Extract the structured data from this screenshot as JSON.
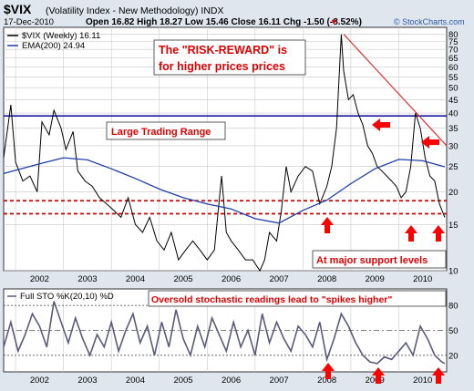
{
  "header": {
    "symbol": "$VIX",
    "description": "(Volatility Index - New Methodology) INDX",
    "date": "17-Dec-2010",
    "ohlc": "Open 16.82  High 18.27  Low 15.46  Close 16.11  Chg -1.50 (-8.52%)",
    "down_arrow": "▼",
    "watermark": "© StockCharts.com"
  },
  "legend": {
    "price": "$VIX (Weekly) 16.11",
    "ema": "EMA(200) 24.94",
    "sto": "Full STO %K(20,10) %D"
  },
  "annotations": {
    "risk_reward_line1": "The \"RISK-REWARD\" is",
    "risk_reward_line2": "for higher prices prices",
    "trading_range": "Large Trading Range",
    "support": "At major support levels",
    "oversold": "Oversold stochastic readings lead to \"spikes higher\""
  },
  "colors": {
    "price": "#000000",
    "ema": "#1f3fa8",
    "range_line": "#1a1aa0",
    "support_line": "#cc0000",
    "trend_line": "#e03030",
    "annotation_text": "#e00000",
    "arrow": "#ff0000",
    "sto": "#5a5a7a",
    "background": "#ffffff",
    "frame": "#dfe6ee"
  },
  "chart_data": [
    {
      "type": "line",
      "title": "$VIX (Volatility Index - New Methodology) INDX",
      "scale": "log",
      "ylim": [
        10,
        85
      ],
      "y_ticks": [
        10,
        15,
        20,
        25,
        30,
        35,
        40,
        45,
        50,
        55,
        60,
        65,
        70,
        75,
        80
      ],
      "x_ticks": [
        "2002",
        "2003",
        "2004",
        "2005",
        "2006",
        "2007",
        "2008",
        "2009",
        "2010"
      ],
      "x_range": [
        2001.75,
        2011.0
      ],
      "series": [
        {
          "name": "$VIX (Weekly) 16.11",
          "x": [
            2001.75,
            2001.9,
            2002.0,
            2002.15,
            2002.3,
            2002.45,
            2002.55,
            2002.7,
            2002.8,
            2002.95,
            2003.05,
            2003.2,
            2003.3,
            2003.45,
            2003.6,
            2003.75,
            2003.9,
            2004.05,
            2004.2,
            2004.35,
            2004.5,
            2004.65,
            2004.8,
            2004.95,
            2005.1,
            2005.25,
            2005.4,
            2005.55,
            2005.7,
            2005.85,
            2006.0,
            2006.15,
            2006.3,
            2006.4,
            2006.5,
            2006.65,
            2006.8,
            2006.95,
            2007.1,
            2007.2,
            2007.3,
            2007.45,
            2007.55,
            2007.65,
            2007.75,
            2007.9,
            2008.05,
            2008.2,
            2008.35,
            2008.5,
            2008.6,
            2008.7,
            2008.8,
            2008.85,
            2008.95,
            2009.05,
            2009.15,
            2009.25,
            2009.35,
            2009.45,
            2009.55,
            2009.65,
            2009.75,
            2009.85,
            2009.95,
            2010.05,
            2010.15,
            2010.25,
            2010.35,
            2010.45,
            2010.55,
            2010.65,
            2010.75,
            2010.85,
            2010.96
          ],
          "values": [
            27,
            43,
            26,
            22,
            23,
            20,
            37,
            33,
            41,
            35,
            29,
            34,
            24,
            22,
            21,
            19,
            18,
            17,
            16,
            19,
            15,
            14,
            16,
            13,
            12,
            14,
            11,
            12,
            13,
            12,
            11,
            12,
            23,
            14,
            13,
            12,
            11,
            11,
            10,
            11,
            14,
            13,
            17,
            25,
            20,
            23,
            25,
            24,
            18,
            21,
            25,
            35,
            80,
            58,
            45,
            47,
            40,
            36,
            30,
            28,
            25,
            24,
            23,
            22,
            21,
            19,
            20,
            25,
            40,
            35,
            27,
            23,
            22,
            18,
            16
          ]
        },
        {
          "name": "EMA(200) 24.94",
          "x": [
            2001.75,
            2002.5,
            2003.0,
            2003.5,
            2004.0,
            2004.5,
            2005.0,
            2005.5,
            2006.0,
            2006.5,
            2007.0,
            2007.5,
            2008.0,
            2008.5,
            2009.0,
            2009.5,
            2010.0,
            2010.5,
            2010.96
          ],
          "values": [
            23.5,
            25.6,
            27.0,
            26.5,
            24.5,
            22.5,
            20.5,
            19.0,
            18.0,
            17.2,
            15.8,
            15.2,
            17.0,
            18.6,
            21.5,
            24.5,
            26.6,
            26.3,
            24.94
          ]
        }
      ],
      "horizontal_lines": [
        39,
        18.5,
        16.5
      ],
      "trend_line": {
        "x": [
          2008.85,
          2011.0
        ],
        "values": [
          80,
          30
        ]
      }
    },
    {
      "type": "line",
      "title": "Full STO %K(20,10) %D",
      "ylim": [
        0,
        100
      ],
      "y_ticks": [
        20,
        50,
        80
      ],
      "x_ticks": [
        "2002",
        "2003",
        "2004",
        "2005",
        "2006",
        "2007",
        "2008",
        "2009",
        "2010"
      ],
      "series": [
        {
          "name": "Full STO %K(20,10) %D",
          "x": [
            2001.75,
            2001.9,
            2002.05,
            2002.2,
            2002.35,
            2002.5,
            2002.65,
            2002.8,
            2002.95,
            2003.1,
            2003.25,
            2003.4,
            2003.55,
            2003.7,
            2003.85,
            2004.0,
            2004.15,
            2004.3,
            2004.45,
            2004.6,
            2004.75,
            2004.9,
            2005.05,
            2005.2,
            2005.35,
            2005.5,
            2005.65,
            2005.8,
            2005.95,
            2006.1,
            2006.25,
            2006.4,
            2006.55,
            2006.7,
            2006.85,
            2007.0,
            2007.15,
            2007.3,
            2007.45,
            2007.6,
            2007.75,
            2007.9,
            2008.05,
            2008.2,
            2008.35,
            2008.5,
            2008.65,
            2008.8,
            2008.95,
            2009.1,
            2009.25,
            2009.4,
            2009.55,
            2009.7,
            2009.85,
            2010.0,
            2010.15,
            2010.3,
            2010.45,
            2010.6,
            2010.75,
            2010.9,
            2010.96
          ],
          "values": [
            30,
            60,
            25,
            45,
            70,
            55,
            30,
            85,
            60,
            35,
            65,
            40,
            20,
            45,
            30,
            60,
            25,
            50,
            70,
            35,
            55,
            20,
            60,
            30,
            75,
            40,
            20,
            55,
            30,
            65,
            45,
            25,
            60,
            30,
            50,
            20,
            70,
            35,
            60,
            40,
            25,
            55,
            45,
            30,
            60,
            15,
            40,
            70,
            55,
            35,
            20,
            12,
            10,
            18,
            15,
            25,
            35,
            20,
            55,
            40,
            20,
            12,
            10
          ]
        }
      ],
      "reference_lines": [
        20,
        50,
        80
      ]
    }
  ]
}
